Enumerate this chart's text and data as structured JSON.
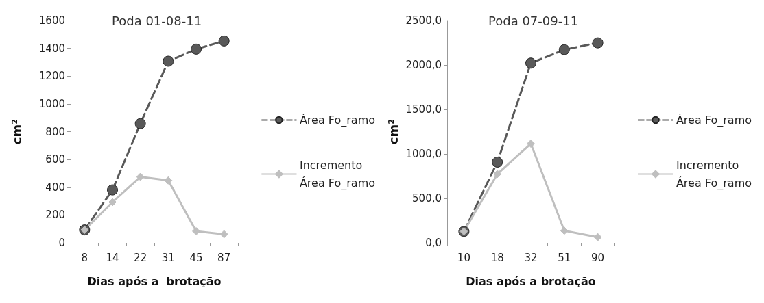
{
  "chart_data": [
    {
      "type": "line",
      "title": "Poda 01-08-11",
      "xlabel": "Dias após a  brotação",
      "ylabel": "cm²",
      "categories": [
        "8",
        "14",
        "22",
        "31",
        "45",
        "87"
      ],
      "series": [
        {
          "name": "Área Fo_ramo",
          "color": "#595959",
          "marker": "circle",
          "line_style": "dashed",
          "values": [
            93,
            381,
            858,
            1307,
            1394,
            1453
          ]
        },
        {
          "name": "Incremento\nÁrea Fo_ramo",
          "color": "#bfbfbf",
          "marker": "diamond",
          "line_style": "solid",
          "values": [
            93,
            293,
            475,
            449,
            84,
            62
          ]
        }
      ],
      "ylim": [
        0,
        1600
      ],
      "yticks": [
        0,
        200,
        400,
        600,
        800,
        1000,
        1200,
        1400,
        1600
      ],
      "grid": false,
      "legend": "right"
    },
    {
      "type": "line",
      "title": "Poda 07-09-11",
      "xlabel": "Dias após a brotação",
      "ylabel": "cm²",
      "categories": [
        "10",
        "18",
        "32",
        "51",
        "90"
      ],
      "series": [
        {
          "name": "Área Fo_ramo",
          "color": "#595959",
          "marker": "circle",
          "line_style": "dashed",
          "values": [
            128,
            908,
            2021,
            2172,
            2249
          ]
        },
        {
          "name": "Incremento\nÁrea Fo_ramo",
          "color": "#bfbfbf",
          "marker": "diamond",
          "line_style": "solid",
          "values": [
            128,
            774,
            1115,
            136,
            64
          ]
        }
      ],
      "ylim": [
        0,
        2500
      ],
      "yticks": [
        {
          "value": 0,
          "label": "0,0"
        },
        {
          "value": 500,
          "label": "500,0"
        },
        {
          "value": 1000,
          "label": "1000,0"
        },
        {
          "value": 1500,
          "label": "1500,0"
        },
        {
          "value": 2000,
          "label": "2000,0"
        },
        {
          "value": 2500,
          "label": "2500,0"
        }
      ],
      "grid": false,
      "legend": "right"
    }
  ]
}
